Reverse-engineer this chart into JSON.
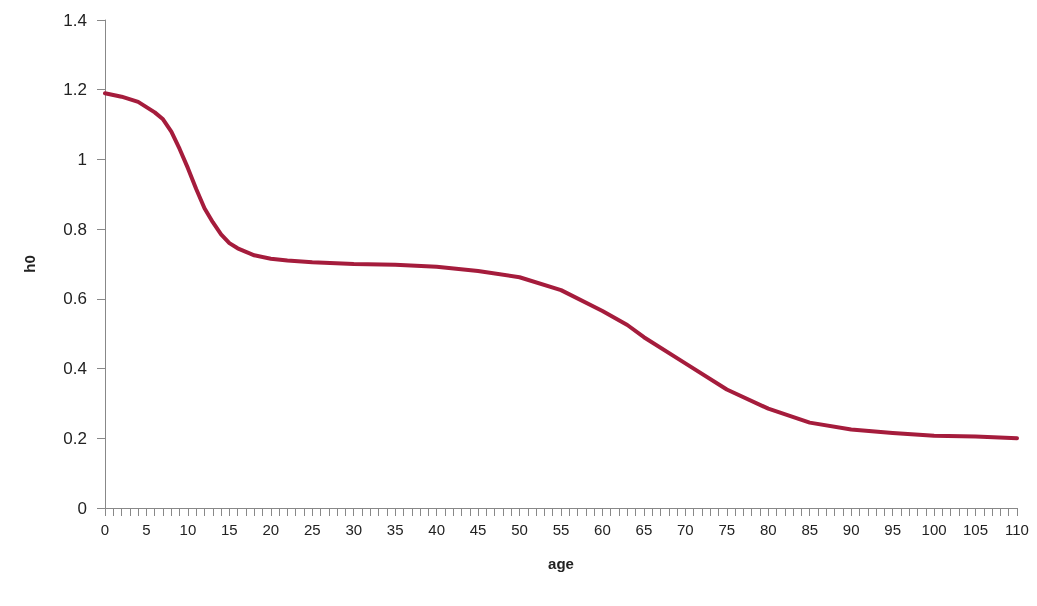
{
  "chart_data": {
    "type": "line",
    "xlabel": "age",
    "ylabel": "h0",
    "x": [
      0,
      2,
      4,
      5,
      6,
      7,
      8,
      9,
      10,
      11,
      12,
      13,
      14,
      15,
      16,
      17,
      18,
      20,
      22,
      25,
      30,
      35,
      40,
      45,
      50,
      55,
      60,
      63,
      65,
      70,
      75,
      80,
      85,
      90,
      95,
      100,
      105,
      110
    ],
    "series": [
      {
        "color": "#a51c3c",
        "values": [
          1.19,
          1.18,
          1.165,
          1.15,
          1.135,
          1.115,
          1.08,
          1.03,
          0.975,
          0.915,
          0.86,
          0.82,
          0.785,
          0.76,
          0.745,
          0.735,
          0.725,
          0.715,
          0.71,
          0.705,
          0.7,
          0.698,
          0.692,
          0.68,
          0.662,
          0.625,
          0.565,
          0.525,
          0.49,
          0.415,
          0.34,
          0.285,
          0.245,
          0.225,
          0.215,
          0.207,
          0.205,
          0.2
        ]
      }
    ],
    "xlim": [
      0,
      110
    ],
    "xticks": [
      0,
      {
        "value": 1,
        "label": null
      },
      {
        "value": 2,
        "label": null
      },
      {
        "value": 3,
        "label": null
      },
      {
        "value": 4,
        "label": null
      },
      5,
      {
        "value": 6,
        "label": null
      },
      {
        "value": 7,
        "label": null
      },
      {
        "value": 8,
        "label": null
      },
      {
        "value": 9,
        "label": null
      },
      10,
      {
        "value": 11,
        "label": null
      },
      {
        "value": 12,
        "label": null
      },
      {
        "value": 13,
        "label": null
      },
      {
        "value": 14,
        "label": null
      },
      15,
      {
        "value": 16,
        "label": null
      },
      {
        "value": 17,
        "label": null
      },
      {
        "value": 18,
        "label": null
      },
      {
        "value": 19,
        "label": null
      },
      20,
      {
        "value": 21,
        "label": null
      },
      {
        "value": 22,
        "label": null
      },
      {
        "value": 23,
        "label": null
      },
      {
        "value": 24,
        "label": null
      },
      25,
      {
        "value": 26,
        "label": null
      },
      {
        "value": 27,
        "label": null
      },
      {
        "value": 28,
        "label": null
      },
      {
        "value": 29,
        "label": null
      },
      30,
      {
        "value": 31,
        "label": null
      },
      {
        "value": 32,
        "label": null
      },
      {
        "value": 33,
        "label": null
      },
      {
        "value": 34,
        "label": null
      },
      35,
      {
        "value": 36,
        "label": null
      },
      {
        "value": 37,
        "label": null
      },
      {
        "value": 38,
        "label": null
      },
      {
        "value": 39,
        "label": null
      },
      40,
      {
        "value": 41,
        "label": null
      },
      {
        "value": 42,
        "label": null
      },
      {
        "value": 43,
        "label": null
      },
      {
        "value": 44,
        "label": null
      },
      45,
      {
        "value": 46,
        "label": null
      },
      {
        "value": 47,
        "label": null
      },
      {
        "value": 48,
        "label": null
      },
      {
        "value": 49,
        "label": null
      },
      50,
      {
        "value": 51,
        "label": null
      },
      {
        "value": 52,
        "label": null
      },
      {
        "value": 53,
        "label": null
      },
      {
        "value": 54,
        "label": null
      },
      55,
      {
        "value": 56,
        "label": null
      },
      {
        "value": 57,
        "label": null
      },
      {
        "value": 58,
        "label": null
      },
      {
        "value": 59,
        "label": null
      },
      60,
      {
        "value": 61,
        "label": null
      },
      {
        "value": 62,
        "label": null
      },
      {
        "value": 63,
        "label": null
      },
      {
        "value": 64,
        "label": null
      },
      65,
      {
        "value": 66,
        "label": null
      },
      {
        "value": 67,
        "label": null
      },
      {
        "value": 68,
        "label": null
      },
      {
        "value": 69,
        "label": null
      },
      70,
      {
        "value": 71,
        "label": null
      },
      {
        "value": 72,
        "label": null
      },
      {
        "value": 73,
        "label": null
      },
      {
        "value": 74,
        "label": null
      },
      75,
      {
        "value": 76,
        "label": null
      },
      {
        "value": 77,
        "label": null
      },
      {
        "value": 78,
        "label": null
      },
      {
        "value": 79,
        "label": null
      },
      80,
      {
        "value": 81,
        "label": null
      },
      {
        "value": 82,
        "label": null
      },
      {
        "value": 83,
        "label": null
      },
      {
        "value": 84,
        "label": null
      },
      85,
      {
        "value": 86,
        "label": null
      },
      {
        "value": 87,
        "label": null
      },
      {
        "value": 88,
        "label": null
      },
      {
        "value": 89,
        "label": null
      },
      90,
      {
        "value": 91,
        "label": null
      },
      {
        "value": 92,
        "label": null
      },
      {
        "value": 93,
        "label": null
      },
      {
        "value": 94,
        "label": null
      },
      95,
      {
        "value": 96,
        "label": null
      },
      {
        "value": 97,
        "label": null
      },
      {
        "value": 98,
        "label": null
      },
      {
        "value": 99,
        "label": null
      },
      100,
      {
        "value": 101,
        "label": null
      },
      {
        "value": 102,
        "label": null
      },
      {
        "value": 103,
        "label": null
      },
      {
        "value": 104,
        "label": null
      },
      105,
      {
        "value": 106,
        "label": null
      },
      {
        "value": 107,
        "label": null
      },
      {
        "value": 108,
        "label": null
      },
      {
        "value": 109,
        "label": null
      },
      110
    ],
    "ylim": [
      0,
      1.4
    ],
    "yticks": [
      0,
      0.2,
      0.4,
      0.6,
      0.8,
      1,
      1.2,
      1.4
    ],
    "grid": false,
    "marker": "none",
    "line_style": "solid"
  }
}
